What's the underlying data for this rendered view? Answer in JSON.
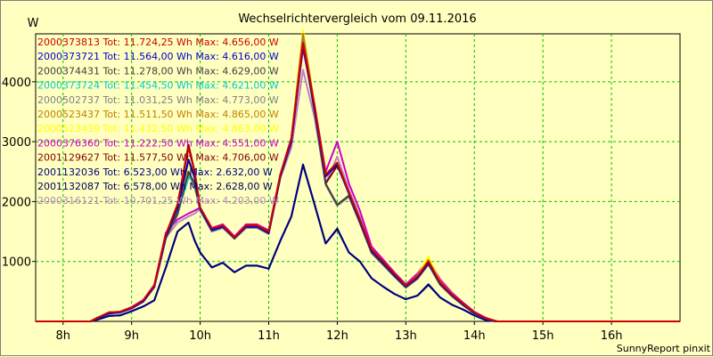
{
  "chart_data": {
    "type": "line",
    "title": "Wechselrichtervergleich vom 09.11.2016",
    "ylabel": "W",
    "xlabel": "",
    "footer": "SunnyReport pinxit",
    "xlim": [
      7.6,
      17.0
    ],
    "ylim": [
      0,
      4800
    ],
    "grid": true,
    "legend_position": "top-left",
    "x_ticks": [
      {
        "value": 8,
        "label": "8h"
      },
      {
        "value": 9,
        "label": "9h"
      },
      {
        "value": 10,
        "label": "10h"
      },
      {
        "value": 11,
        "label": "11h"
      },
      {
        "value": 12,
        "label": "12h"
      },
      {
        "value": 13,
        "label": "13h"
      },
      {
        "value": 14,
        "label": "14h"
      },
      {
        "value": 15,
        "label": "15h"
      },
      {
        "value": 16,
        "label": "16h"
      }
    ],
    "y_ticks": [
      {
        "value": 1000,
        "label": "1000"
      },
      {
        "value": 2000,
        "label": "2000"
      },
      {
        "value": 3000,
        "label": "3000"
      },
      {
        "value": 4000,
        "label": "4000"
      }
    ],
    "x": [
      7.5,
      8.0,
      8.25,
      8.4,
      8.5,
      8.67,
      8.83,
      9.0,
      9.17,
      9.33,
      9.5,
      9.67,
      9.83,
      9.92,
      10.0,
      10.17,
      10.33,
      10.5,
      10.67,
      10.83,
      11.0,
      11.17,
      11.33,
      11.5,
      11.67,
      11.83,
      12.0,
      12.17,
      12.33,
      12.5,
      12.67,
      12.83,
      13.0,
      13.17,
      13.33,
      13.5,
      13.67,
      13.83,
      14.0,
      14.17,
      14.33,
      14.5,
      14.67,
      14.83,
      15.0,
      15.17,
      15.33,
      15.5,
      15.67,
      15.83,
      16.0,
      16.17,
      16.33,
      16.5,
      16.67,
      16.83,
      17.0
    ],
    "series": [
      {
        "name": "2000373813",
        "label": "2000373813 Tot: 11.724,25 Wh Max: 4.656,00 W",
        "color": "#cc0000",
        "values": [
          0,
          0,
          0,
          0,
          60,
          150,
          160,
          230,
          350,
          600,
          1450,
          1950,
          2900,
          2500,
          1900,
          1550,
          1600,
          1400,
          1600,
          1600,
          1500,
          2450,
          3050,
          4650,
          3600,
          2450,
          2650,
          2150,
          1700,
          1200,
          1000,
          800,
          600,
          750,
          1000,
          650,
          450,
          300,
          150,
          50,
          0,
          0,
          0,
          0,
          0,
          0,
          0,
          0,
          0,
          0,
          0,
          0,
          0,
          0,
          0,
          0,
          0
        ]
      },
      {
        "name": "2000373721",
        "label": "2000373721 Tot: 11.564,00 Wh Max: 4.616,00 W",
        "color": "#0000cc",
        "values": [
          0,
          0,
          0,
          0,
          60,
          130,
          150,
          220,
          330,
          580,
          1420,
          1900,
          2700,
          2400,
          1880,
          1520,
          1580,
          1400,
          1580,
          1580,
          1480,
          2420,
          3000,
          4610,
          3550,
          2420,
          2620,
          2130,
          1680,
          1180,
          980,
          780,
          590,
          730,
          980,
          640,
          440,
          290,
          140,
          40,
          0,
          0,
          0,
          0,
          0,
          0,
          0,
          0,
          0,
          0,
          0,
          0,
          0,
          0,
          0,
          0,
          0
        ]
      },
      {
        "name": "2000374431",
        "label": "2000374431 Tot: 11.278,00 Wh Max: 4.629,00 W",
        "color": "#404040",
        "values": [
          0,
          0,
          0,
          0,
          55,
          140,
          150,
          220,
          340,
          580,
          1400,
          1800,
          2500,
          2300,
          1880,
          1520,
          1580,
          1380,
          1580,
          1580,
          1470,
          2430,
          3000,
          4620,
          3500,
          2300,
          1950,
          2100,
          1650,
          1150,
          950,
          760,
          570,
          720,
          960,
          620,
          430,
          280,
          140,
          40,
          0,
          0,
          0,
          0,
          0,
          0,
          0,
          0,
          0,
          0,
          0,
          0,
          0,
          0,
          0,
          0,
          0
        ]
      },
      {
        "name": "2000373724",
        "label": "2000373724 Tot: 11.454,50 Wh Max: 4.621,00 W",
        "color": "#00cccc",
        "values": [
          0,
          0,
          0,
          0,
          60,
          140,
          150,
          225,
          340,
          590,
          1430,
          1800,
          2400,
          2350,
          1900,
          1540,
          1590,
          1400,
          1590,
          1590,
          1490,
          2440,
          3020,
          4620,
          3560,
          2430,
          2630,
          2140,
          1690,
          1190,
          990,
          790,
          600,
          740,
          990,
          640,
          440,
          290,
          140,
          40,
          0,
          0,
          0,
          0,
          0,
          0,
          0,
          0,
          0,
          0,
          0,
          0,
          0,
          0,
          0,
          0,
          0
        ]
      },
      {
        "name": "2000502737",
        "label": "2000502737 Tot: 11.031,25 Wh Max: 4.773,00 W",
        "color": "#808080",
        "values": [
          0,
          0,
          0,
          0,
          55,
          135,
          145,
          215,
          330,
          570,
          1380,
          1780,
          2450,
          2250,
          1850,
          1500,
          1560,
          1380,
          1560,
          1560,
          1460,
          2400,
          2980,
          4700,
          3480,
          2280,
          1930,
          2080,
          1640,
          1140,
          940,
          750,
          560,
          710,
          950,
          610,
          420,
          270,
          130,
          40,
          0,
          0,
          0,
          0,
          0,
          0,
          0,
          0,
          0,
          0,
          0,
          0,
          0,
          0,
          0,
          0,
          0
        ]
      },
      {
        "name": "2000523437",
        "label": "2000523437 Tot: 11.511,50 Wh Max: 4.865,00 W",
        "color": "#c08000",
        "values": [
          0,
          0,
          0,
          0,
          60,
          150,
          160,
          230,
          350,
          600,
          1450,
          1850,
          2700,
          2450,
          1900,
          1550,
          1600,
          1400,
          1600,
          1600,
          1500,
          2450,
          3050,
          4800,
          3600,
          2450,
          2650,
          2150,
          1700,
          1200,
          1000,
          800,
          600,
          760,
          1020,
          660,
          450,
          300,
          150,
          50,
          0,
          0,
          0,
          0,
          0,
          0,
          0,
          0,
          0,
          0,
          0,
          0,
          0,
          0,
          0,
          0,
          0
        ]
      },
      {
        "name": "2000523439",
        "label": "2000523439 Tot: 11.432,50 Wh Max: 4.863,00 W",
        "color": "#ffff00",
        "values": [
          0,
          0,
          0,
          0,
          60,
          145,
          155,
          225,
          345,
          595,
          1440,
          1840,
          2650,
          2400,
          1890,
          1540,
          1590,
          1390,
          1590,
          1590,
          1490,
          2440,
          3040,
          4860,
          3580,
          2440,
          2640,
          2140,
          1690,
          1190,
          990,
          790,
          600,
          760,
          1080,
          660,
          450,
          300,
          150,
          50,
          0,
          0,
          0,
          0,
          0,
          0,
          0,
          0,
          0,
          0,
          0,
          0,
          0,
          0,
          0,
          0,
          0
        ]
      },
      {
        "name": "2000376360",
        "label": "2000376360 Tot: 11.222,50 Wh Max: 4.551,00 W",
        "color": "#cc00cc",
        "values": [
          0,
          0,
          0,
          0,
          60,
          150,
          160,
          240,
          360,
          610,
          1480,
          1700,
          1800,
          1850,
          1900,
          1560,
          1620,
          1420,
          1620,
          1620,
          1520,
          2460,
          3060,
          4550,
          3600,
          2500,
          3000,
          2300,
          1850,
          1250,
          1030,
          820,
          620,
          800,
          1040,
          700,
          480,
          320,
          160,
          60,
          0,
          0,
          0,
          0,
          0,
          0,
          0,
          0,
          0,
          0,
          0,
          0,
          0,
          0,
          0,
          0,
          0
        ]
      },
      {
        "name": "2001129627",
        "label": "2001129627 Tot: 11.577,50 Wh Max: 4.706,00 W",
        "color": "#800000",
        "values": [
          0,
          0,
          0,
          0,
          60,
          150,
          160,
          230,
          350,
          600,
          1450,
          1950,
          2950,
          2500,
          1900,
          1550,
          1600,
          1400,
          1600,
          1600,
          1500,
          2450,
          3050,
          4700,
          3600,
          2300,
          2600,
          2150,
          1700,
          1200,
          1000,
          800,
          600,
          750,
          1000,
          650,
          450,
          300,
          150,
          50,
          0,
          0,
          0,
          0,
          0,
          0,
          0,
          0,
          0,
          0,
          0,
          0,
          0,
          0,
          0,
          0,
          0
        ]
      },
      {
        "name": "2001132036",
        "label": "2001132036 Tot: 6.523,00 Wh Max: 2.632,00 W",
        "color": "#000080",
        "values": [
          0,
          0,
          0,
          0,
          30,
          90,
          100,
          170,
          250,
          350,
          900,
          1500,
          1650,
          1350,
          1150,
          900,
          980,
          820,
          930,
          930,
          880,
          1350,
          1750,
          2620,
          1950,
          1300,
          1550,
          1150,
          1000,
          720,
          580,
          460,
          370,
          430,
          610,
          400,
          280,
          200,
          100,
          20,
          0,
          0,
          0,
          0,
          0,
          0,
          0,
          0,
          0,
          0,
          0,
          0,
          0,
          0,
          0,
          0,
          0
        ]
      },
      {
        "name": "2001132087",
        "label": "2001132087 Tot: 6.578,00 Wh Max: 2.628,00 W",
        "color": "#000060",
        "values": [
          0,
          0,
          0,
          0,
          30,
          90,
          100,
          170,
          250,
          350,
          900,
          1500,
          1650,
          1350,
          1150,
          900,
          980,
          820,
          930,
          930,
          880,
          1350,
          1750,
          2610,
          1950,
          1300,
          1540,
          1150,
          1000,
          720,
          580,
          460,
          370,
          430,
          620,
          400,
          280,
          200,
          100,
          20,
          0,
          0,
          0,
          0,
          0,
          0,
          0,
          0,
          0,
          0,
          0,
          0,
          0,
          0,
          0,
          0,
          0
        ]
      },
      {
        "name": "2000316121",
        "label": "2000316121 Tot: 10.701,25 Wh Max: 4.203,00 W",
        "color": "#c080c0",
        "values": [
          0,
          0,
          0,
          0,
          55,
          140,
          150,
          220,
          330,
          570,
          1400,
          1650,
          1750,
          1800,
          1880,
          1520,
          1580,
          1380,
          1580,
          1580,
          1470,
          2400,
          2900,
          4200,
          3400,
          2300,
          2750,
          2200,
          1750,
          1180,
          980,
          780,
          580,
          740,
          960,
          620,
          430,
          280,
          140,
          40,
          0,
          0,
          0,
          0,
          0,
          0,
          0,
          0,
          0,
          0,
          0,
          0,
          0,
          0,
          0,
          0,
          0
        ]
      }
    ]
  }
}
